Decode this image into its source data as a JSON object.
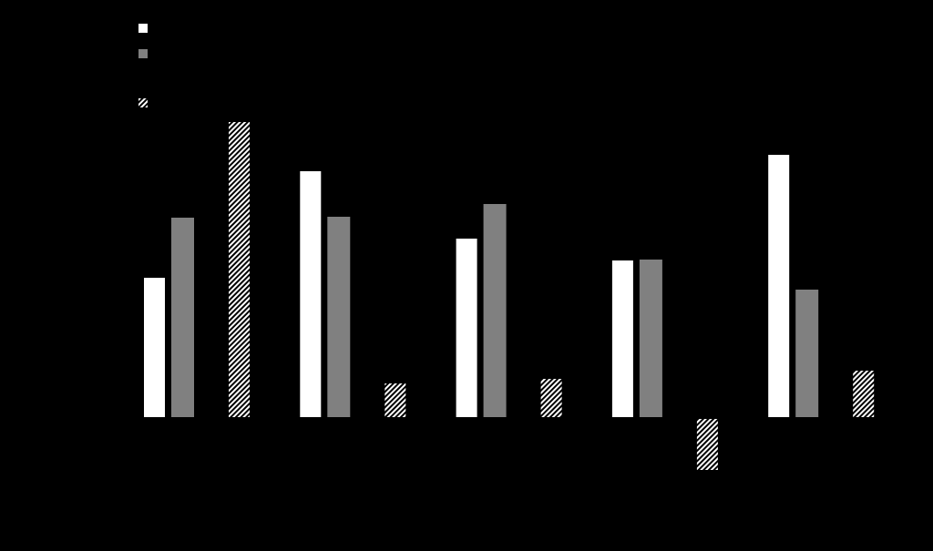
{
  "chart_data": {
    "type": "bar",
    "categories": [
      null,
      null,
      null,
      null,
      null
    ],
    "series": [
      {
        "color": "#ffffff",
        "values": [
          153,
          270,
          196,
          172,
          288
        ]
      },
      {
        "color": "#808080",
        "values": [
          219,
          220,
          234,
          173,
          140
        ]
      },
      {
        "color": "#ffffff",
        "hatch": true,
        "values": [
          324,
          37,
          42,
          -56,
          51
        ]
      }
    ],
    "ylim": [
      -147,
      458
    ]
  }
}
